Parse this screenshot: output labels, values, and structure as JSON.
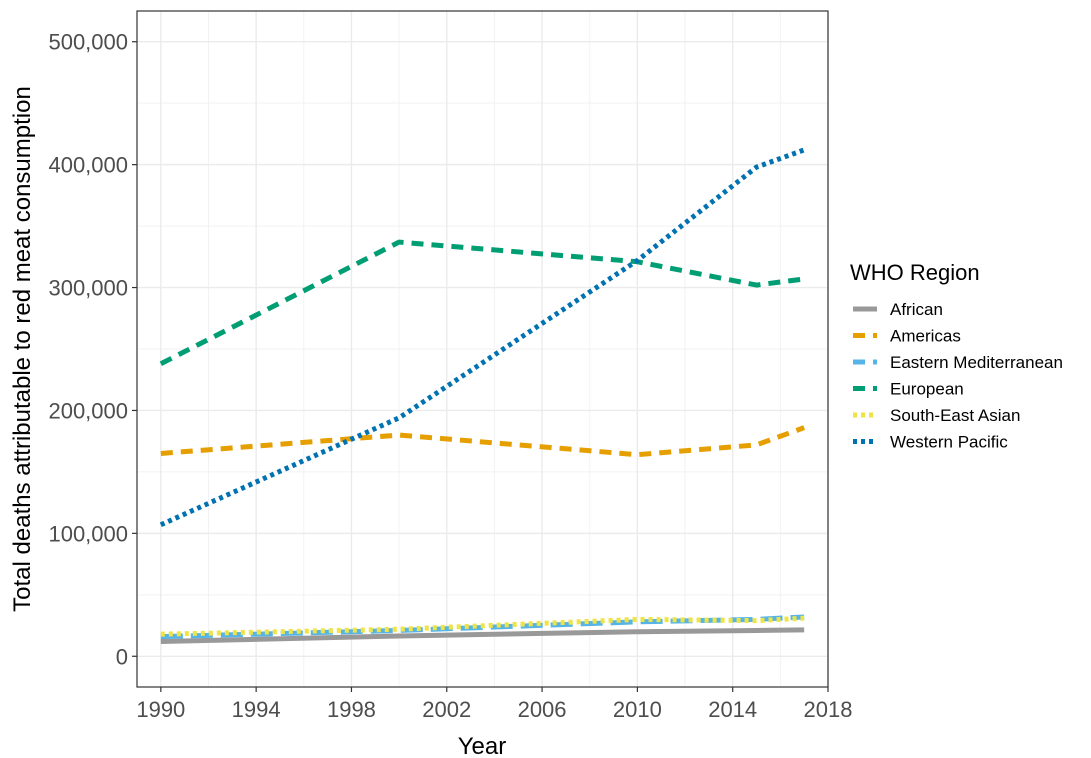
{
  "chart_data": {
    "type": "line",
    "xlabel": "Year",
    "ylabel": "Total deaths attributable to red meat consumption",
    "xlim": [
      1989,
      2018
    ],
    "ylim": [
      -25000,
      525000
    ],
    "x_ticks": [
      1990,
      1994,
      1998,
      2002,
      2006,
      2010,
      2014,
      2018
    ],
    "x_tick_labels": [
      "1990",
      "1994",
      "1998",
      "2002",
      "2006",
      "2010",
      "2014",
      "2018"
    ],
    "y_ticks": [
      0,
      100000,
      200000,
      300000,
      400000,
      500000
    ],
    "y_tick_labels": [
      "0",
      "100,000",
      "200,000",
      "300,000",
      "400,000",
      "500,000"
    ],
    "grid": true,
    "legend": {
      "title": "WHO Region",
      "position": "right"
    },
    "x": [
      1990,
      2000,
      2010,
      2015,
      2017
    ],
    "series": [
      {
        "name": "African",
        "color": "#999999",
        "dash": "solid",
        "values": [
          12000,
          16500,
          20000,
          21000,
          21500
        ]
      },
      {
        "name": "Americas",
        "color": "#E69F00",
        "dash": "dashed",
        "values": [
          165000,
          180000,
          164000,
          172000,
          186000
        ]
      },
      {
        "name": "Eastern Mediterranean",
        "color": "#56B4E9",
        "dash": "longdash",
        "values": [
          16000,
          21000,
          28000,
          30000,
          32000
        ]
      },
      {
        "name": "European",
        "color": "#009E73",
        "dash": "dashed",
        "values": [
          238000,
          337000,
          321000,
          302000,
          307000
        ]
      },
      {
        "name": "South-East Asian",
        "color": "#F0E442",
        "dash": "dotted",
        "values": [
          18000,
          22000,
          30000,
          29000,
          31000
        ]
      },
      {
        "name": "Western Pacific",
        "color": "#0072B2",
        "dash": "dotted",
        "values": [
          107000,
          194000,
          322000,
          398000,
          412000
        ]
      }
    ]
  }
}
